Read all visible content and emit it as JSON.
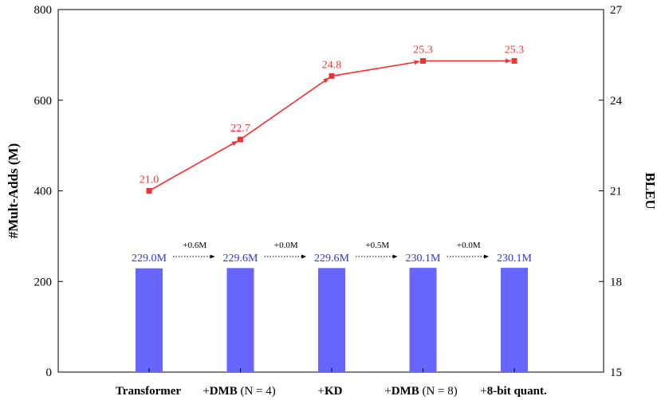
{
  "chart_data": {
    "type": "bar+line",
    "categories": [
      {
        "prefix": "",
        "bold": "Transformer",
        "suffix": ""
      },
      {
        "prefix": "+",
        "bold": "DMB",
        "suffix": " (N = 4)"
      },
      {
        "prefix": "+",
        "bold": "KD",
        "suffix": ""
      },
      {
        "prefix": "+",
        "bold": "DMB",
        "suffix": " (N = 8)"
      },
      {
        "prefix": "+",
        "bold": "8-bit quant.",
        "suffix": ""
      }
    ],
    "bars": {
      "axis": "left",
      "values": [
        229.0,
        229.6,
        229.6,
        230.1,
        230.1
      ],
      "labels": [
        "229.0M",
        "229.6M",
        "229.6M",
        "230.1M",
        "230.1M"
      ],
      "color": "#6666ff",
      "label_color": "#3333dd"
    },
    "deltas": [
      "+0.6M",
      "+0.0M",
      "+0.5M",
      "+0.0M"
    ],
    "line": {
      "axis": "right",
      "values": [
        21.0,
        22.7,
        24.8,
        25.3,
        25.3
      ],
      "labels": [
        "21.0",
        "22.7",
        "24.8",
        "25.3",
        "25.3"
      ],
      "color": "#ee3333"
    },
    "ylabel_left": "#Mult-Adds (M)",
    "ylabel_right": "BLEU",
    "ylim_left": [
      0,
      800
    ],
    "ylim_right": [
      15,
      27
    ],
    "yticks_left": [
      0,
      200,
      400,
      600,
      800
    ],
    "yticks_right": [
      15,
      18,
      21,
      24,
      27
    ],
    "grid": false
  }
}
